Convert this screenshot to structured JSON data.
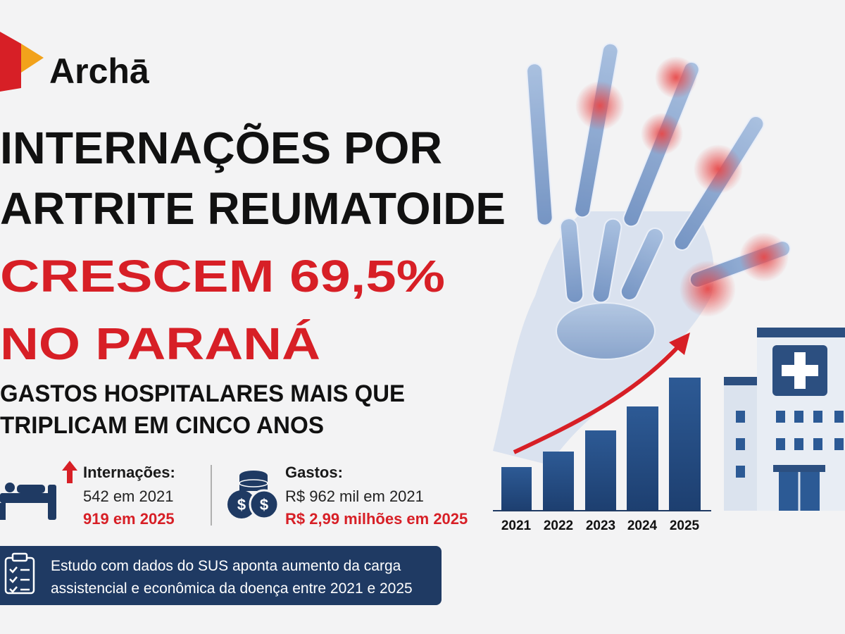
{
  "logo": {
    "name": "Archā"
  },
  "headline": {
    "lines": [
      "INTERNAÇÕES POR",
      "ARTRITE REUMATOIDE",
      "CRESCEM 69,5%",
      "NO PARANÁ"
    ]
  },
  "subtitle": {
    "lines": [
      "GASTOS HOSPITALARES MAIS QUE",
      "TRIPLICAM EM CINCO ANOS"
    ]
  },
  "stats": [
    {
      "label": "Internações:",
      "from": "542 em 2021",
      "to": "919 em 2025"
    },
    {
      "label": "Gastos:",
      "from": "R$ 962 mil em 2021",
      "to": "R$ 2,99 milhões em 2025"
    }
  ],
  "chart": {
    "years": [
      "2021",
      "2022",
      "2023",
      "2024",
      "2025"
    ]
  },
  "footer": {
    "lines": [
      "Estudo com dados do SUS aponta aumento da carga",
      "assistencial e econômica da doença entre 2021 e 2025"
    ]
  }
}
